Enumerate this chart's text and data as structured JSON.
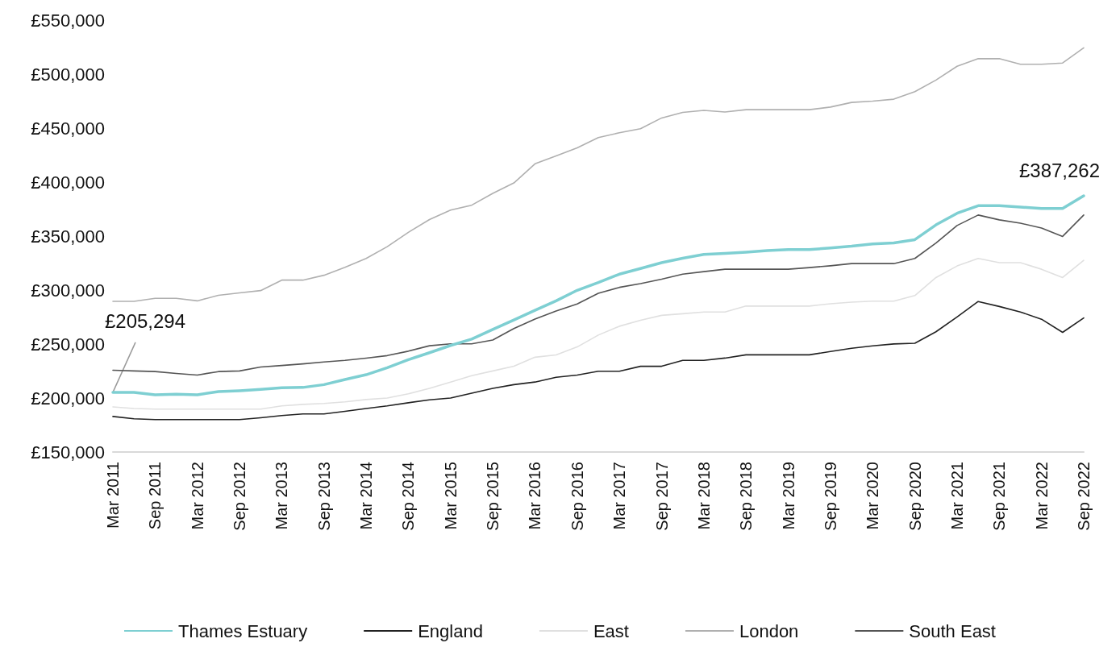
{
  "chart_data": {
    "type": "line",
    "categories": [
      "Mar 2011",
      null,
      "Sep 2011",
      null,
      "Mar 2012",
      null,
      "Sep 2012",
      null,
      "Mar 2013",
      null,
      "Sep 2013",
      null,
      "Mar 2014",
      null,
      "Sep 2014",
      null,
      "Mar 2015",
      null,
      "Sep 2015",
      null,
      "Mar 2016",
      null,
      "Sep 2016",
      null,
      "Mar 2017",
      null,
      "Sep 2017",
      null,
      "Mar 2018",
      null,
      "Sep 2018",
      null,
      "Mar 2019",
      null,
      "Sep 2019",
      null,
      "Mar 2020",
      null,
      "Sep 2020",
      null,
      "Mar 2021",
      null,
      "Sep 2021",
      null,
      "Mar 2022",
      null,
      "Sep 2022"
    ],
    "series": [
      {
        "name": "Thames Estuary",
        "color": "#7ecfd2",
        "values": [
          205294,
          205300,
          203000,
          203600,
          203000,
          205900,
          206800,
          208000,
          209500,
          209800,
          212400,
          217200,
          221600,
          228100,
          235500,
          242000,
          248700,
          254600,
          263500,
          272300,
          281200,
          290000,
          299800,
          307000,
          314700,
          320000,
          325400,
          329500,
          333000,
          334000,
          335100,
          336500,
          337500,
          337500,
          339000,
          340600,
          342700,
          343600,
          346700,
          360400,
          371100,
          378100,
          378100,
          376900,
          375600,
          375600,
          387262
        ]
      },
      {
        "name": "England",
        "color": "#222222",
        "values": [
          182900,
          180800,
          180000,
          180000,
          180000,
          180000,
          180000,
          181700,
          183800,
          185300,
          185300,
          187700,
          190300,
          192700,
          195600,
          198300,
          200000,
          204500,
          208900,
          212400,
          214800,
          219200,
          221300,
          224800,
          224800,
          229400,
          229400,
          234900,
          234900,
          237000,
          240000,
          240000,
          240000,
          240000,
          243100,
          246100,
          248300,
          250100,
          250700,
          261400,
          275100,
          289400,
          284800,
          279700,
          273000,
          260800,
          274200
        ]
      },
      {
        "name": "East",
        "color": "#e0e0e0",
        "values": [
          191800,
          190300,
          189700,
          189700,
          189700,
          189700,
          189700,
          189700,
          192700,
          194100,
          195000,
          196500,
          198600,
          200000,
          203900,
          208900,
          214800,
          220700,
          225100,
          229500,
          237800,
          239900,
          247300,
          258300,
          266500,
          272000,
          276600,
          278100,
          279700,
          279700,
          285200,
          285200,
          285200,
          285200,
          287300,
          288800,
          289700,
          289700,
          294900,
          311600,
          322300,
          329300,
          325400,
          325400,
          319300,
          311600,
          327500
        ]
      },
      {
        "name": "London",
        "color": "#b0b0b0",
        "values": [
          289500,
          289500,
          292400,
          292400,
          290000,
          295100,
          297400,
          299500,
          309200,
          309200,
          313700,
          321000,
          329300,
          340200,
          353500,
          365300,
          374100,
          378600,
          389500,
          399200,
          416900,
          424300,
          431700,
          441200,
          445700,
          449400,
          459400,
          464600,
          466400,
          464900,
          467100,
          467100,
          467100,
          467100,
          469500,
          473800,
          475000,
          476800,
          483800,
          494500,
          507300,
          514300,
          514300,
          509100,
          509100,
          510300,
          524300
        ]
      },
      {
        "name": "South East",
        "color": "#555555",
        "values": [
          225700,
          225100,
          224500,
          222800,
          221300,
          224500,
          225100,
          228700,
          230100,
          231600,
          233400,
          234900,
          236900,
          239300,
          243400,
          248400,
          250200,
          250200,
          253700,
          264400,
          273200,
          280600,
          287100,
          297000,
          302500,
          306000,
          310100,
          314700,
          317100,
          319300,
          319300,
          319300,
          319300,
          320800,
          322500,
          324500,
          324500,
          324500,
          329300,
          343600,
          359800,
          369500,
          365000,
          362000,
          357400,
          349700,
          369500
        ]
      }
    ],
    "ylim": [
      150000,
      550000
    ],
    "yticks": [
      {
        "value": 150000,
        "label": "£150,000"
      },
      {
        "value": 200000,
        "label": "£200,000"
      },
      {
        "value": 250000,
        "label": "£250,000"
      },
      {
        "value": 300000,
        "label": "£300,000"
      },
      {
        "value": 350000,
        "label": "£350,000"
      },
      {
        "value": 400000,
        "label": "£400,000"
      },
      {
        "value": 450000,
        "label": "£450,000"
      },
      {
        "value": 500000,
        "label": "£500,000"
      },
      {
        "value": 550000,
        "label": "£550,000"
      }
    ],
    "annotations": [
      {
        "text": "£205,294",
        "x": "Mar 2011",
        "y": 205294
      },
      {
        "text": "£387,262",
        "x": "Sep 2022",
        "y": 387262
      }
    ],
    "grid": false,
    "legend": "bottom",
    "marker": "none"
  }
}
